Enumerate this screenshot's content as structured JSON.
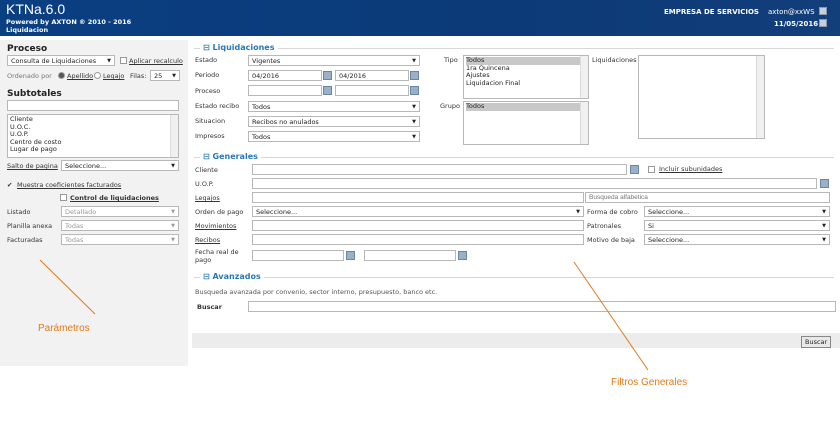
{
  "header": {
    "app_title": "KTNa.6.0",
    "powered": "Powered by AXTON ® 2010 - 2016",
    "module": "Liquidacion",
    "company": "EMPRESA DE SERVICIOS",
    "user": "axton@xxWS",
    "date": "11/05/2016"
  },
  "left": {
    "proceso_title": "Proceso",
    "proceso_value": "Consulta de Liquidaciones",
    "aplicar": "Aplicar recalculo",
    "ordenado": "Ordenado por",
    "apellido": "Apellido",
    "legajo": "Legajo",
    "filas_label": "Filas:",
    "filas_value": "25",
    "subtotales_title": "Subtotales",
    "subtotales_items": [
      "Cliente",
      "U.O.C.",
      "U.O.P.",
      "Centro de costo",
      "Lugar de pago"
    ],
    "salto_label": "Salto de pagina",
    "salto_value": "Seleccione...",
    "muestra": "Muestra coeficientes facturados",
    "control": "Control de liquidaciones",
    "listado_label": "Listado",
    "listado_value": "Detallado",
    "planilla_label": "Planilla anexa",
    "planilla_value": "Todas",
    "facturadas_label": "Facturadas",
    "facturadas_value": "Todas"
  },
  "liq": {
    "title": "Liquidaciones",
    "estado_label": "Estado",
    "estado_value": "Vigentes",
    "periodo_label": "Periodo",
    "periodo_from": "04/2016",
    "periodo_to": "04/2016",
    "proceso_label": "Proceso",
    "estado_recibo_label": "Estado recibo",
    "estado_recibo_value": "Todos",
    "situacion_label": "Situacion",
    "situacion_value": "Recibos no anulados",
    "impresos_label": "Impresos",
    "impresos_value": "Todos",
    "tipo_label": "Tipo",
    "tipo_items": [
      "Todos",
      "1ra Quincena",
      "Ajustes",
      "Liquidacion Final"
    ],
    "grupo_label": "Grupo",
    "grupo_items": [
      "Todos"
    ],
    "liquidaciones_label": "Liquidaciones"
  },
  "gen": {
    "title": "Generales",
    "cliente": "Cliente",
    "incluir": "Incluir subunidades",
    "uop": "U.O.P.",
    "legajos": "Legajos",
    "busqueda_placeholder": "Busqueda alfabetica",
    "orden": "Orden de pago",
    "orden_value": "Seleccione...",
    "forma": "Forma de cobro",
    "forma_value": "Seleccione...",
    "movimientos": "Movimientos",
    "patronales": "Patronales",
    "patronales_value": "Si",
    "recibos": "Recibos",
    "motivo": "Motivo de baja",
    "motivo_value": "Seleccione...",
    "fecha": "Fecha real de pago"
  },
  "adv": {
    "title": "Avanzados",
    "desc": "Busqueda avanzada por convenio, sector interno, presupuesto, banco etc.",
    "buscar_label": "Buscar"
  },
  "footer": {
    "buscar_button": "Buscar"
  },
  "annotations": {
    "parametros": "Parámetros",
    "filtros": "Filtros Generales"
  },
  "colors": {
    "header": "#0a3f82",
    "section": "#2a78b8",
    "annotation": "#e07b1a"
  }
}
